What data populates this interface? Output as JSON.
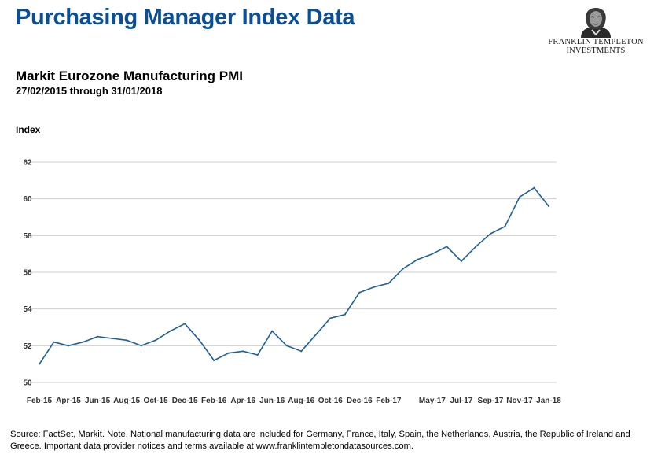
{
  "header": {
    "title": "Purchasing Manager Index Data",
    "logo_line1": "FRANKLIN TEMPLETON",
    "logo_line2": "INVESTMENTS"
  },
  "colors": {
    "title": "#0a4f96",
    "line": "#1f5f9a",
    "grid": "#cfcfcf"
  },
  "chart_data": {
    "type": "line",
    "title": "Markit Eurozone Manufacturing PMI",
    "subtitle": "27/02/2015 through 31/01/2018",
    "ylabel": "Index",
    "xlabel": "",
    "ylim": [
      50,
      62
    ],
    "yticks": [
      50,
      52,
      54,
      56,
      58,
      60,
      62
    ],
    "grid": true,
    "legend": "none",
    "xtick_labels": [
      "Feb-15",
      "Apr-15",
      "Jun-15",
      "Aug-15",
      "Oct-15",
      "Dec-15",
      "Feb-16",
      "Apr-16",
      "Jun-16",
      "Aug-16",
      "Oct-16",
      "Dec-16",
      "Feb-17",
      "May-17",
      "Jul-17",
      "Sep-17",
      "Nov-17",
      "Jan-18"
    ],
    "x": [
      "Feb-15",
      "Mar-15",
      "Apr-15",
      "May-15",
      "Jun-15",
      "Jul-15",
      "Aug-15",
      "Sep-15",
      "Oct-15",
      "Nov-15",
      "Dec-15",
      "Jan-16",
      "Feb-16",
      "Mar-16",
      "Apr-16",
      "May-16",
      "Jun-16",
      "Jul-16",
      "Aug-16",
      "Sep-16",
      "Oct-16",
      "Nov-16",
      "Dec-16",
      "Jan-17",
      "Feb-17",
      "Mar-17",
      "Apr-17",
      "May-17",
      "Jun-17",
      "Jul-17",
      "Aug-17",
      "Sep-17",
      "Oct-17",
      "Nov-17",
      "Dec-17",
      "Jan-18"
    ],
    "series": [
      {
        "values": [
          51.0,
          52.2,
          52.0,
          52.2,
          52.5,
          52.4,
          52.3,
          52.0,
          52.3,
          52.8,
          53.2,
          52.3,
          51.2,
          51.6,
          51.7,
          51.5,
          52.8,
          52.0,
          51.7,
          52.6,
          53.5,
          53.7,
          54.9,
          55.2,
          55.4,
          56.2,
          56.7,
          57.0,
          57.4,
          56.6,
          57.4,
          58.1,
          58.5,
          60.1,
          60.6,
          59.6
        ]
      }
    ]
  },
  "footnote": "Source: FactSet, Markit. Note, National manufacturing data are included for Germany, France, Italy, Spain, the Netherlands, Austria, the Republic of Ireland and Greece. Important data provider notices and terms available at www.franklintempletondatasources.com."
}
